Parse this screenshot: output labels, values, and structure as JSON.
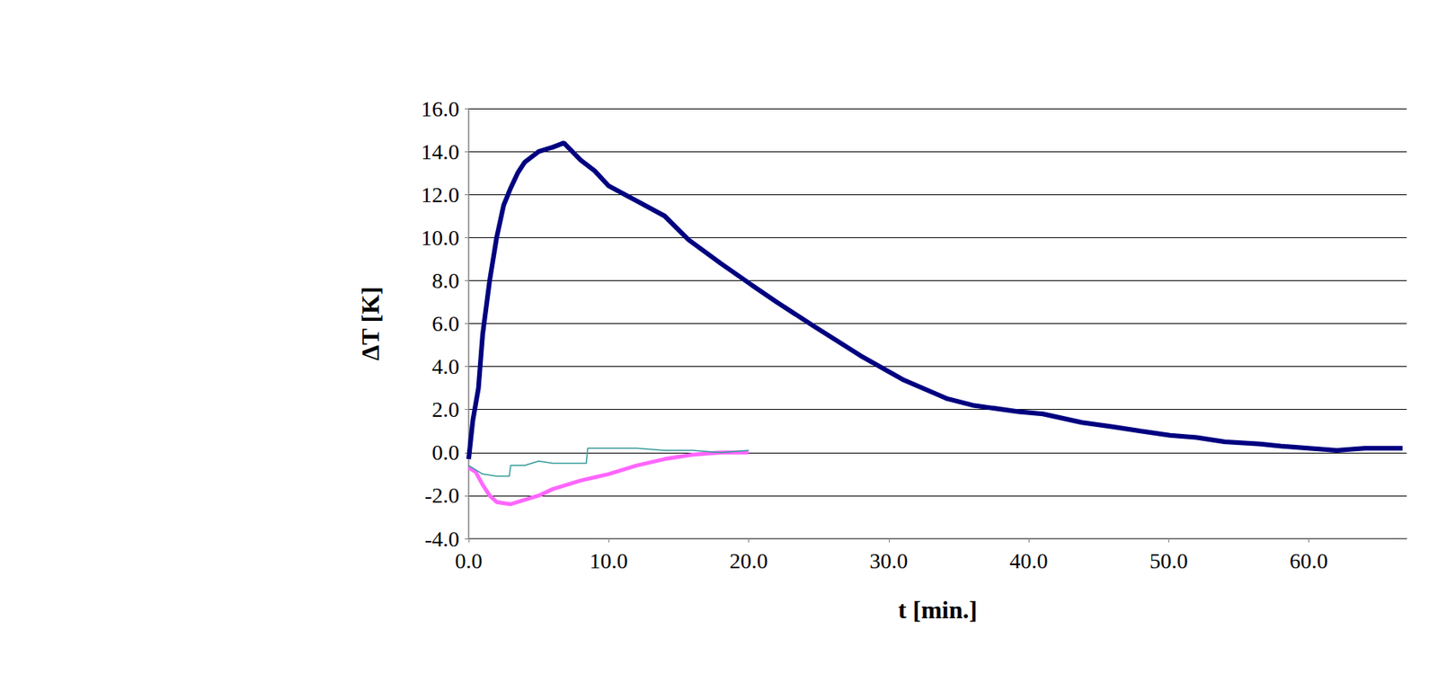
{
  "chart_data": {
    "type": "line",
    "x_label": "t [min.]",
    "y_label": "ΔT [K]",
    "xlim": [
      0,
      67
    ],
    "xticks": [
      {
        "value": 0,
        "label": "0.0"
      },
      {
        "value": 10,
        "label": "10.0"
      },
      {
        "value": 20,
        "label": "20.0"
      },
      {
        "value": 30,
        "label": "30.0"
      },
      {
        "value": 40,
        "label": "40.0"
      },
      {
        "value": 50,
        "label": "50.0"
      },
      {
        "value": 60,
        "label": "60.0"
      }
    ],
    "ylim": [
      -4,
      16
    ],
    "yticks": [
      {
        "value": -4,
        "label": "-4.0"
      },
      {
        "value": -2,
        "label": "-2.0"
      },
      {
        "value": 0,
        "label": "0.0"
      },
      {
        "value": 2,
        "label": "2.0"
      },
      {
        "value": 4,
        "label": "4.0"
      },
      {
        "value": 6,
        "label": "6.0"
      },
      {
        "value": 8,
        "label": "8.0"
      },
      {
        "value": 10,
        "label": "10.0"
      },
      {
        "value": 12,
        "label": "12.0"
      },
      {
        "value": 14,
        "label": "14.0"
      },
      {
        "value": 16,
        "label": "16.0"
      }
    ],
    "grid": true,
    "marker": "none",
    "series": [
      {
        "color": "#000080",
        "line_style": "solid",
        "x": [
          0,
          0.3,
          0.7,
          1,
          1.5,
          2,
          2.5,
          3,
          3.5,
          4,
          5,
          6,
          6.8,
          8,
          9,
          10,
          12,
          14,
          15.7,
          18,
          20.2,
          22,
          24.6,
          28,
          31,
          34.2,
          36,
          39.3,
          41,
          43.8,
          46,
          48,
          50.1,
          52,
          54,
          56.5,
          58,
          60,
          62,
          64,
          66.7
        ],
        "values": [
          -0.3,
          1.5,
          3.0,
          5.5,
          8.0,
          10.0,
          11.5,
          12.3,
          13.0,
          13.5,
          14.0,
          14.2,
          14.4,
          13.6,
          13.1,
          12.4,
          11.7,
          11.0,
          9.9,
          8.8,
          7.8,
          7.0,
          5.9,
          4.5,
          3.4,
          2.5,
          2.2,
          1.9,
          1.8,
          1.4,
          1.2,
          1.0,
          0.8,
          0.7,
          0.5,
          0.4,
          0.3,
          0.2,
          0.1,
          0.2,
          0.2
        ]
      },
      {
        "color": "#339999",
        "line_style": "solid",
        "x": [
          0,
          1,
          2,
          2.9,
          3,
          4,
          5,
          6,
          7,
          8.4,
          8.5,
          10,
          12,
          14,
          16,
          18,
          20
        ],
        "values": [
          -0.6,
          -1.0,
          -1.1,
          -1.1,
          -0.6,
          -0.6,
          -0.4,
          -0.5,
          -0.5,
          -0.5,
          0.2,
          0.2,
          0.2,
          0.1,
          0.1,
          0.0,
          0.1
        ]
      },
      {
        "color": "#ff66ff",
        "line_style": "solid",
        "x": [
          0,
          0.5,
          1,
          1.5,
          2,
          3,
          4,
          5,
          6,
          8,
          10,
          12,
          14,
          16,
          18,
          20
        ],
        "values": [
          -0.7,
          -0.9,
          -1.5,
          -2.0,
          -2.3,
          -2.4,
          -2.2,
          -2.0,
          -1.7,
          -1.3,
          -1.0,
          -0.6,
          -0.3,
          -0.1,
          0.0,
          0.0
        ]
      }
    ]
  }
}
